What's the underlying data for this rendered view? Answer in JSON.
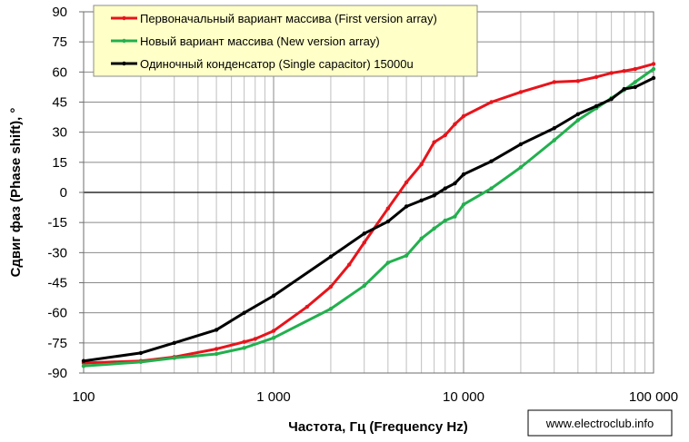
{
  "chart_data": {
    "type": "line",
    "x_scale": "log",
    "xlim": [
      100,
      100000
    ],
    "ylim": [
      -90,
      90
    ],
    "xlabel": "Частота, Гц (Frequency Hz)",
    "ylabel": "Сдвиг фаз (Phase shift), °",
    "y_ticks": [
      90,
      75,
      60,
      45,
      30,
      15,
      0,
      -15,
      -30,
      -45,
      -60,
      -75,
      -90
    ],
    "x_ticks": [
      {
        "value": 100,
        "label": "100"
      },
      {
        "value": 1000,
        "label": "1 000"
      },
      {
        "value": 10000,
        "label": "10 000"
      },
      {
        "value": 100000,
        "label": "100 000"
      }
    ],
    "grid": true,
    "legend_position": "top-left",
    "series": [
      {
        "name": "Первоначальный вариант массива (First version array)",
        "color": "#e8141b",
        "points": [
          [
            100,
            -85
          ],
          [
            200,
            -84
          ],
          [
            300,
            -82
          ],
          [
            500,
            -78
          ],
          [
            700,
            -74.5
          ],
          [
            800,
            -73
          ],
          [
            1000,
            -69
          ],
          [
            1500,
            -57
          ],
          [
            2000,
            -47
          ],
          [
            2500,
            -36
          ],
          [
            3000,
            -25
          ],
          [
            4000,
            -8
          ],
          [
            5000,
            5
          ],
          [
            6000,
            14
          ],
          [
            7000,
            25
          ],
          [
            8000,
            28.5
          ],
          [
            9000,
            34
          ],
          [
            10000,
            38
          ],
          [
            14000,
            45
          ],
          [
            20000,
            50
          ],
          [
            30000,
            55
          ],
          [
            40000,
            55.5
          ],
          [
            50000,
            57.5
          ],
          [
            60000,
            59.5
          ],
          [
            70000,
            60.5
          ],
          [
            80000,
            61.5
          ],
          [
            100000,
            64
          ]
        ]
      },
      {
        "name": "Новый вариант массива (New version array)",
        "color": "#22b04e",
        "points": [
          [
            100,
            -86.5
          ],
          [
            200,
            -84.5
          ],
          [
            300,
            -82.5
          ],
          [
            500,
            -80.5
          ],
          [
            700,
            -77.5
          ],
          [
            1000,
            -72.5
          ],
          [
            2000,
            -58
          ],
          [
            3000,
            -46.5
          ],
          [
            4000,
            -35
          ],
          [
            5000,
            -31.5
          ],
          [
            6000,
            -23
          ],
          [
            7000,
            -18
          ],
          [
            8000,
            -14
          ],
          [
            9000,
            -12
          ],
          [
            10000,
            -6
          ],
          [
            14000,
            2
          ],
          [
            20000,
            12.5
          ],
          [
            30000,
            26
          ],
          [
            40000,
            36
          ],
          [
            50000,
            42
          ],
          [
            60000,
            47
          ],
          [
            70000,
            51
          ],
          [
            80000,
            55
          ],
          [
            100000,
            61.5
          ]
        ]
      },
      {
        "name": "Одиночный конденсатор (Single capacitor) 15000u",
        "color": "#000000",
        "points": [
          [
            100,
            -84
          ],
          [
            200,
            -80
          ],
          [
            300,
            -75
          ],
          [
            500,
            -68.5
          ],
          [
            700,
            -60
          ],
          [
            1000,
            -51.5
          ],
          [
            2000,
            -32
          ],
          [
            3000,
            -20.5
          ],
          [
            4000,
            -14.5
          ],
          [
            5000,
            -7
          ],
          [
            6000,
            -4
          ],
          [
            7000,
            -1.5
          ],
          [
            8000,
            2
          ],
          [
            9000,
            4.5
          ],
          [
            10000,
            9
          ],
          [
            14000,
            15.5
          ],
          [
            20000,
            24
          ],
          [
            30000,
            32
          ],
          [
            40000,
            39
          ],
          [
            50000,
            43
          ],
          [
            60000,
            46.5
          ],
          [
            70000,
            51.5
          ],
          [
            80000,
            52.5
          ],
          [
            100000,
            57
          ]
        ]
      }
    ]
  },
  "watermark": "www.electroclub.info"
}
